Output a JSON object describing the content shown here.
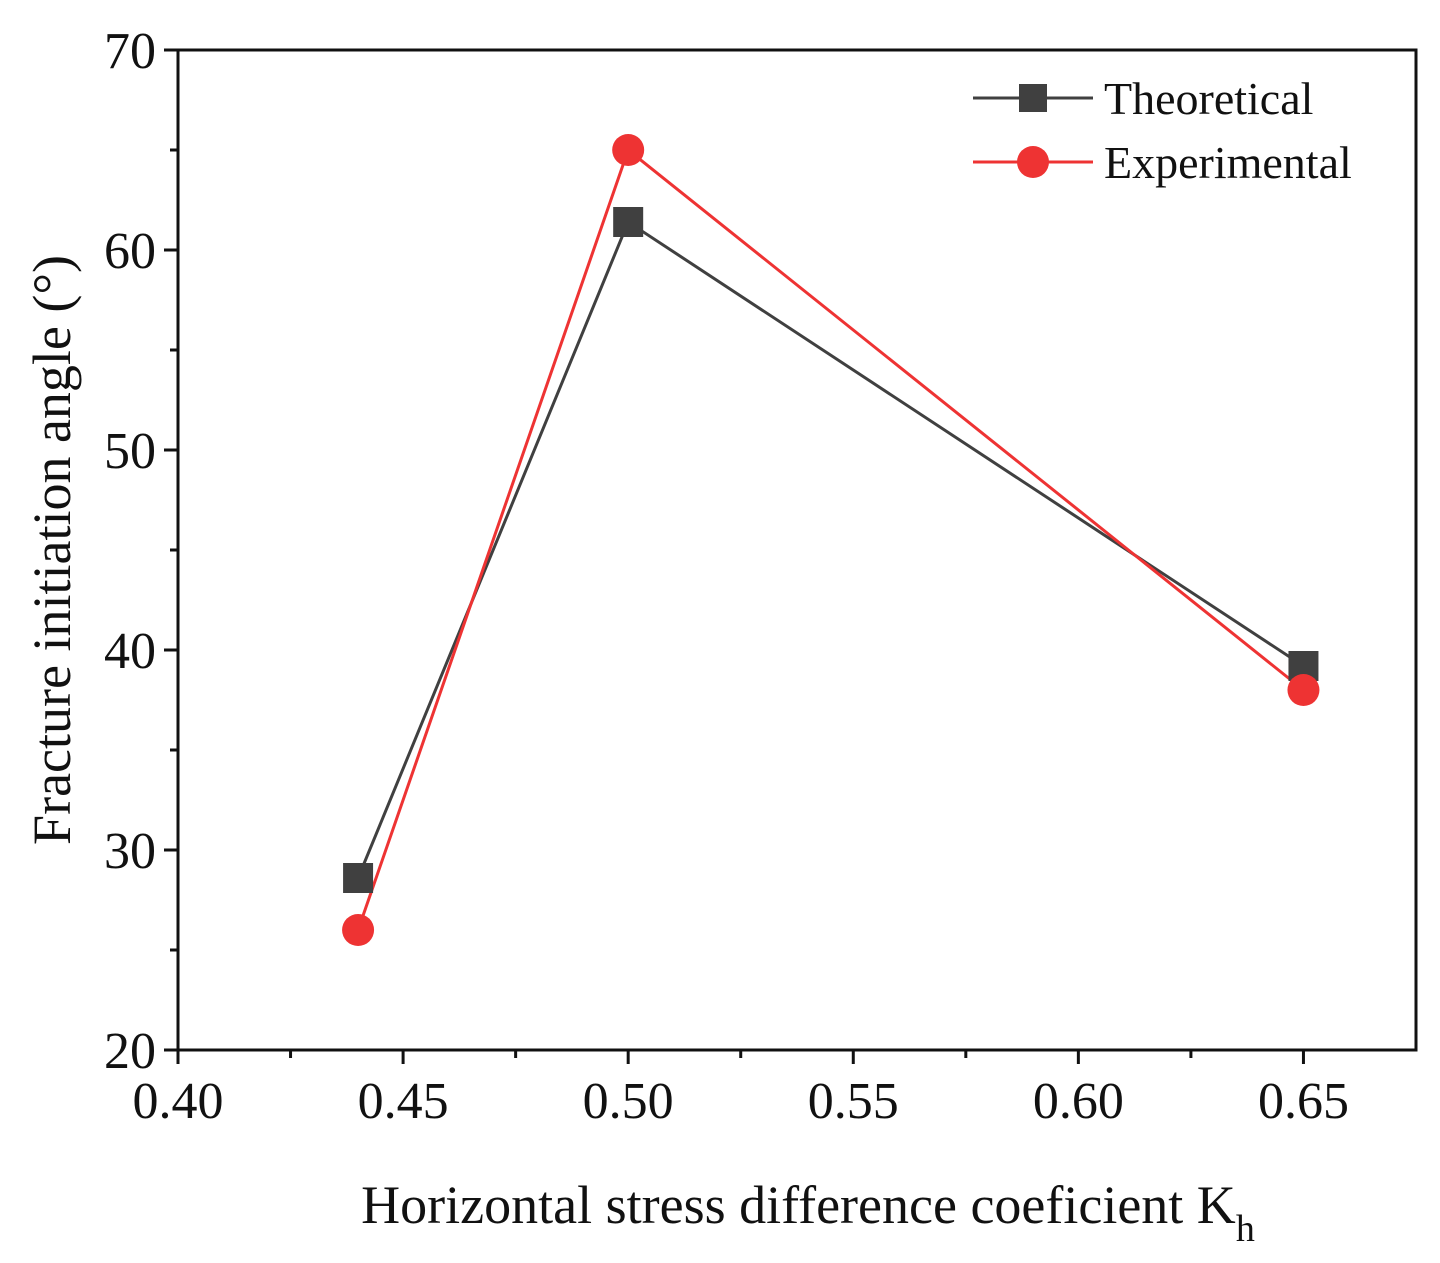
{
  "chart_data": {
    "type": "line",
    "title": "",
    "xlabel": "Horizontal stress difference coeficient K",
    "xlabel_subscript": "h",
    "ylabel": "Fracture initiation angle (°)",
    "xlim": [
      0.4,
      0.675
    ],
    "ylim": [
      20,
      70
    ],
    "x_major_ticks": [
      0.4,
      0.45,
      0.5,
      0.55,
      0.6,
      0.65
    ],
    "x_tick_labels": [
      "0.40",
      "0.45",
      "0.50",
      "0.55",
      "0.60",
      "0.65"
    ],
    "x_minor_ticks": [
      0.425,
      0.475,
      0.525,
      0.575,
      0.625
    ],
    "y_major_ticks": [
      20,
      30,
      40,
      50,
      60,
      70
    ],
    "y_tick_labels": [
      "20",
      "30",
      "40",
      "50",
      "60",
      "70"
    ],
    "y_minor_ticks": [
      25,
      35,
      45,
      55,
      65
    ],
    "grid": false,
    "legend_position": "top-right",
    "series": [
      {
        "name": "Theoretical",
        "marker": "square",
        "color": "#404040",
        "x": [
          0.44,
          0.5,
          0.65
        ],
        "y": [
          28.6,
          61.4,
          39.2
        ]
      },
      {
        "name": "Experimental",
        "marker": "circle",
        "color": "#ee3333",
        "x": [
          0.44,
          0.5,
          0.65
        ],
        "y": [
          26.0,
          65.0,
          38.0
        ]
      }
    ]
  }
}
